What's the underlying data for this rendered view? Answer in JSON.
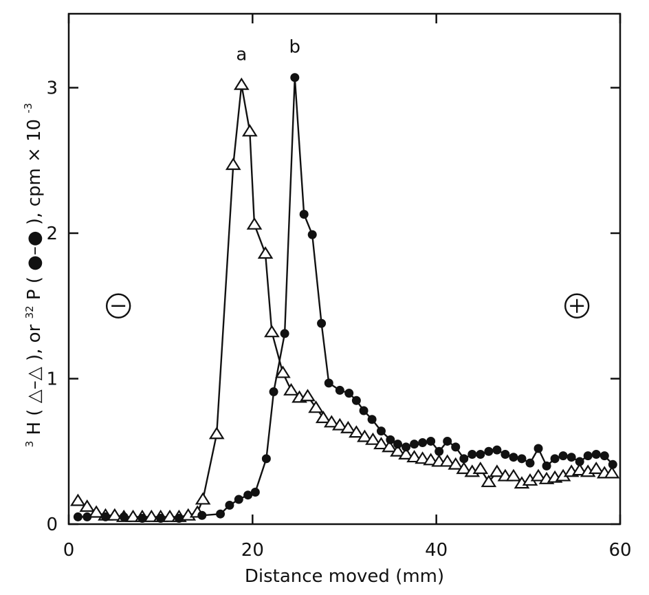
{
  "chart_data": {
    "type": "line",
    "xlabel": "Distance moved (mm)",
    "ylabel_parts": [
      "3",
      "H (",
      "), or ",
      "32",
      "P (",
      "), cpm × 10",
      "-3"
    ],
    "xlim": [
      0,
      60
    ],
    "ylim": [
      0,
      3.5
    ],
    "x_ticks": [
      0,
      20,
      40,
      60
    ],
    "x_tick_labels": [
      "0",
      "20",
      "40",
      "60"
    ],
    "y_ticks": [
      0,
      1,
      2,
      3
    ],
    "y_tick_labels": [
      "0",
      "1",
      "2",
      "3"
    ],
    "grid": false,
    "series": [
      {
        "marker": "open-triangle",
        "points": [
          [
            1,
            0.16
          ],
          [
            2,
            0.12
          ],
          [
            3,
            0.08
          ],
          [
            4,
            0.06
          ],
          [
            5,
            0.06
          ],
          [
            6,
            0.05
          ],
          [
            7,
            0.05
          ],
          [
            8,
            0.05
          ],
          [
            9,
            0.05
          ],
          [
            10,
            0.05
          ],
          [
            11,
            0.05
          ],
          [
            12,
            0.05
          ],
          [
            13,
            0.06
          ],
          [
            14,
            0.08
          ],
          [
            14.6,
            0.17
          ],
          [
            16.1,
            0.62
          ],
          [
            17.9,
            2.47
          ],
          [
            18.8,
            3.02
          ],
          [
            19.7,
            2.7
          ],
          [
            20.2,
            2.06
          ],
          [
            21.4,
            1.86
          ],
          [
            22.1,
            1.32
          ],
          [
            23.3,
            1.04
          ],
          [
            24.2,
            0.92
          ],
          [
            25.1,
            0.87
          ],
          [
            26,
            0.88
          ],
          [
            26.9,
            0.8
          ],
          [
            27.7,
            0.73
          ],
          [
            28.6,
            0.7
          ],
          [
            29.5,
            0.68
          ],
          [
            30.4,
            0.66
          ],
          [
            31.3,
            0.63
          ],
          [
            32.2,
            0.6
          ],
          [
            33.1,
            0.58
          ],
          [
            34,
            0.55
          ],
          [
            34.9,
            0.53
          ],
          [
            35.8,
            0.5
          ],
          [
            36.7,
            0.48
          ],
          [
            37.6,
            0.46
          ],
          [
            38.5,
            0.45
          ],
          [
            39.4,
            0.44
          ],
          [
            40.3,
            0.43
          ],
          [
            41.2,
            0.43
          ],
          [
            42.1,
            0.41
          ],
          [
            43,
            0.38
          ],
          [
            43.9,
            0.36
          ],
          [
            44.8,
            0.38
          ],
          [
            45.7,
            0.29
          ],
          [
            46.6,
            0.36
          ],
          [
            47.5,
            0.33
          ],
          [
            48.4,
            0.33
          ],
          [
            49.3,
            0.28
          ],
          [
            50.2,
            0.3
          ],
          [
            51.1,
            0.33
          ],
          [
            52,
            0.31
          ],
          [
            52.9,
            0.32
          ],
          [
            53.8,
            0.33
          ],
          [
            54.7,
            0.36
          ],
          [
            55.6,
            0.37
          ],
          [
            56.5,
            0.36
          ],
          [
            57.4,
            0.38
          ],
          [
            58.3,
            0.35
          ],
          [
            59.1,
            0.35
          ]
        ]
      },
      {
        "marker": "filled-circle",
        "points": [
          [
            1,
            0.05
          ],
          [
            2,
            0.05
          ],
          [
            4,
            0.05
          ],
          [
            6,
            0.05
          ],
          [
            8,
            0.04
          ],
          [
            10,
            0.04
          ],
          [
            12,
            0.04
          ],
          [
            14.5,
            0.06
          ],
          [
            16.5,
            0.07
          ],
          [
            17.5,
            0.13
          ],
          [
            18.5,
            0.17
          ],
          [
            19.5,
            0.2
          ],
          [
            20.3,
            0.22
          ],
          [
            21.5,
            0.45
          ],
          [
            22.3,
            0.91
          ],
          [
            23.5,
            1.31
          ],
          [
            24.6,
            3.07
          ],
          [
            25.6,
            2.13
          ],
          [
            26.5,
            1.99
          ],
          [
            27.5,
            1.38
          ],
          [
            28.3,
            0.97
          ],
          [
            29.5,
            0.92
          ],
          [
            30.5,
            0.9
          ],
          [
            31.3,
            0.85
          ],
          [
            32.1,
            0.78
          ],
          [
            33,
            0.72
          ],
          [
            34,
            0.64
          ],
          [
            35,
            0.58
          ],
          [
            35.8,
            0.55
          ],
          [
            36.7,
            0.53
          ],
          [
            37.6,
            0.55
          ],
          [
            38.5,
            0.56
          ],
          [
            39.4,
            0.57
          ],
          [
            40.3,
            0.5
          ],
          [
            41.2,
            0.57
          ],
          [
            42.1,
            0.53
          ],
          [
            43,
            0.45
          ],
          [
            43.9,
            0.48
          ],
          [
            44.8,
            0.48
          ],
          [
            45.7,
            0.5
          ],
          [
            46.6,
            0.51
          ],
          [
            47.5,
            0.48
          ],
          [
            48.4,
            0.46
          ],
          [
            49.3,
            0.45
          ],
          [
            50.2,
            0.42
          ],
          [
            51.1,
            0.52
          ],
          [
            52,
            0.4
          ],
          [
            52.9,
            0.45
          ],
          [
            53.8,
            0.47
          ],
          [
            54.7,
            0.46
          ],
          [
            55.6,
            0.43
          ],
          [
            56.5,
            0.47
          ],
          [
            57.4,
            0.48
          ],
          [
            58.3,
            0.47
          ],
          [
            59.2,
            0.41
          ]
        ]
      }
    ],
    "peak_labels": [
      {
        "text": "a",
        "x": 18.8,
        "y": 3.02
      },
      {
        "text": "b",
        "x": 24.6,
        "y": 3.07
      }
    ],
    "pole_markers": [
      {
        "symbol": "−",
        "x": 5.4,
        "y": 1.5
      },
      {
        "symbol": "+",
        "x": 55.3,
        "y": 1.5
      }
    ]
  }
}
